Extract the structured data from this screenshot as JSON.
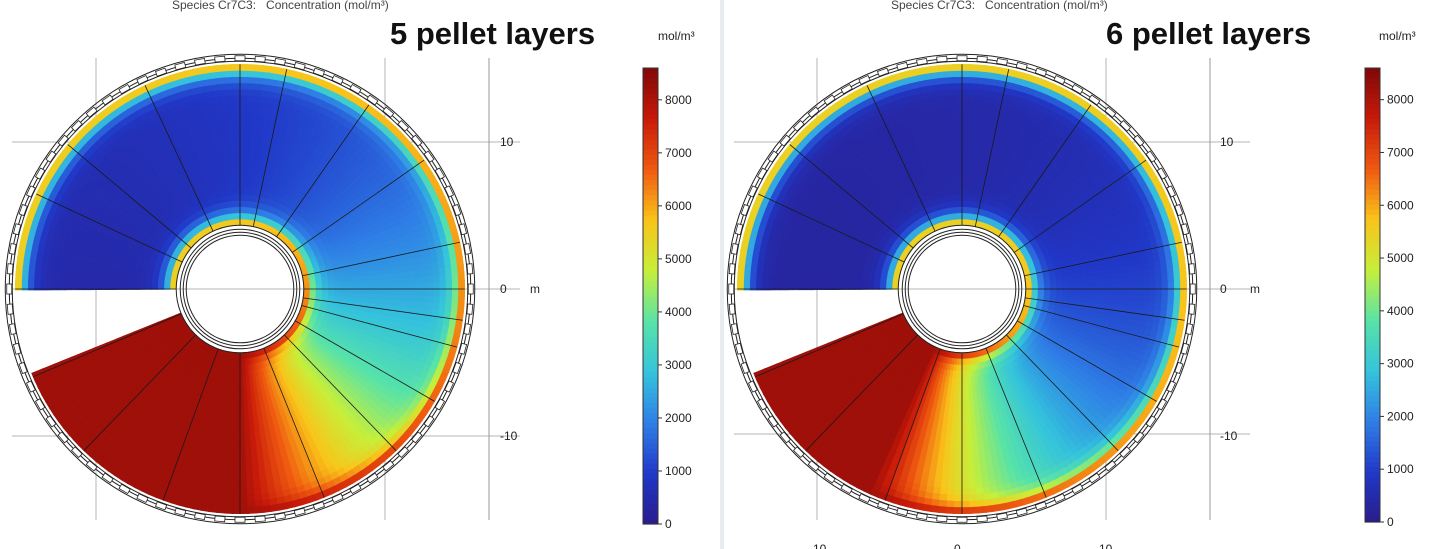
{
  "chart_data": [
    {
      "type": "heatmap",
      "title": "Species Cr7C3:   Concentration (mol/m³)",
      "annotation": "5 pellet layers",
      "axis_unit": "m",
      "y_ticks": [
        {
          "value": 10,
          "label": "10"
        },
        {
          "value": 0,
          "label": "0"
        },
        {
          "value": -10,
          "label": "-10"
        }
      ],
      "x_ticks": [],
      "colorbar": {
        "unit": "mol/m³",
        "range": [
          0,
          8600
        ],
        "ticks": [
          0,
          1000,
          2000,
          3000,
          4000,
          5000,
          6000,
          7000,
          8000
        ],
        "colormap": [
          "#2a1c8c",
          "#2138c8",
          "#2f7ee6",
          "#34c3dc",
          "#58e3a8",
          "#c6ef3a",
          "#f9c41a",
          "#ef5a10",
          "#c81a0a",
          "#800808"
        ]
      },
      "geometry": {
        "inner_radius": 4.4,
        "outer_radius": 15.5,
        "units": "m"
      },
      "field": {
        "description_values": {
          "empty_sector_deg": [
            180,
            203
          ],
          "loaded_sector_deg": [
            203,
            270
          ]
        },
        "levels": {
          "low": 300,
          "high": 8200
        },
        "front_decay_deg": 70
      }
    },
    {
      "type": "heatmap",
      "title": "Species Cr7C3:   Concentration (mol/m³)",
      "annotation": "6 pellet layers",
      "axis_unit": "m",
      "y_ticks": [
        {
          "value": 10,
          "label": "10"
        },
        {
          "value": 0,
          "label": "0"
        },
        {
          "value": -10,
          "label": "-10"
        }
      ],
      "x_ticks": [
        {
          "value": -10,
          "label": "-10"
        },
        {
          "value": 0,
          "label": "0"
        },
        {
          "value": 10,
          "label": "10"
        }
      ],
      "colorbar": {
        "unit": "mol/m³",
        "range": [
          0,
          8600
        ],
        "ticks": [
          0,
          1000,
          2000,
          3000,
          4000,
          5000,
          6000,
          7000,
          8000
        ],
        "colormap": [
          "#2a1c8c",
          "#2138c8",
          "#2f7ee6",
          "#34c3dc",
          "#58e3a8",
          "#c6ef3a",
          "#f9c41a",
          "#ef5a10",
          "#c81a0a",
          "#800808"
        ]
      },
      "geometry": {
        "inner_radius": 4.4,
        "outer_radius": 15.5,
        "units": "m"
      },
      "field": {
        "description_values": {
          "empty_sector_deg": [
            180,
            203
          ],
          "loaded_sector_deg": [
            203,
            245
          ]
        },
        "levels": {
          "low": 300,
          "high": 8200
        },
        "front_decay_deg": 50
      }
    }
  ]
}
